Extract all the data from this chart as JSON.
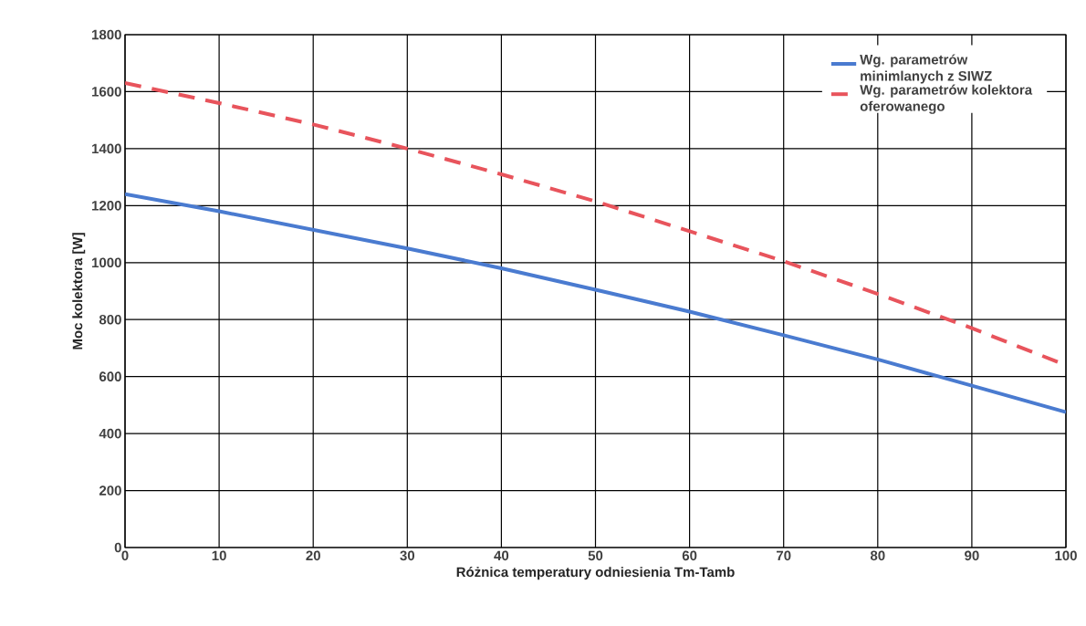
{
  "chart_data": {
    "type": "line",
    "xlabel": "Różnica temperatury odniesienia Tm-Tamb",
    "ylabel": "Moc kolektora [W]",
    "x": [
      0,
      10,
      20,
      30,
      40,
      50,
      60,
      70,
      80,
      90,
      100
    ],
    "series": [
      {
        "name": "Wg. parametrów minimlanych z SIWZ",
        "color": "#4a7bd0",
        "line_style": "solid",
        "values": [
          1240,
          1180,
          1115,
          1050,
          980,
          905,
          828,
          745,
          660,
          568,
          475
        ]
      },
      {
        "name": "Wg. parametrów kolektora oferowanego",
        "color": "#e8545c",
        "line_style": "dashed",
        "values": [
          1630,
          1560,
          1485,
          1400,
          1310,
          1215,
          1110,
          1005,
          890,
          770,
          640
        ]
      }
    ],
    "xlim": [
      0,
      100
    ],
    "ylim": [
      0,
      1800
    ],
    "xticks": [
      0,
      10,
      20,
      30,
      40,
      50,
      60,
      70,
      80,
      90,
      100
    ],
    "yticks": [
      0,
      200,
      400,
      600,
      800,
      1000,
      1200,
      1400,
      1600,
      1800
    ],
    "grid": true,
    "legend": "top right",
    "marker": "none"
  }
}
